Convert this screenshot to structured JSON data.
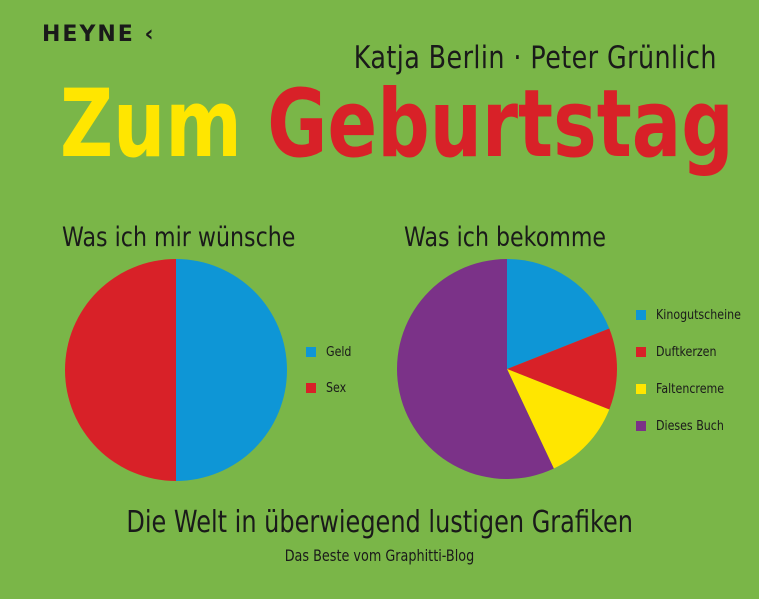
{
  "publisher": "HEYNE ‹",
  "authors": "Katja Berlin · Peter Grünlich",
  "title": {
    "word1": "Zum",
    "word2": "Geburtstag"
  },
  "colors": {
    "background": "#7ab648",
    "yellow": "#ffe600",
    "red": "#d82128",
    "blue": "#0e96d6",
    "purple": "#7b3288"
  },
  "chart_data": [
    {
      "type": "pie",
      "title": "Was ich mir wünsche",
      "labels": [
        "Geld",
        "Sex"
      ],
      "values": [
        50,
        50
      ],
      "colors": [
        "#0e96d6",
        "#d82128"
      ],
      "start_angle": "top, clockwise",
      "legend_position": "right"
    },
    {
      "type": "pie",
      "title": "Was ich bekomme",
      "labels": [
        "Kinogutscheine",
        "Duftkerzen",
        "Faltencreme",
        "Dieses Buch"
      ],
      "values": [
        19,
        12,
        12,
        57
      ],
      "colors": [
        "#0e96d6",
        "#d82128",
        "#ffe600",
        "#7b3288"
      ],
      "start_angle": "top, clockwise",
      "legend_position": "right"
    }
  ],
  "subtitle": "Die Welt in überwiegend lustigen Grafiken",
  "tagline": "Das Beste vom Graphitti-Blog"
}
